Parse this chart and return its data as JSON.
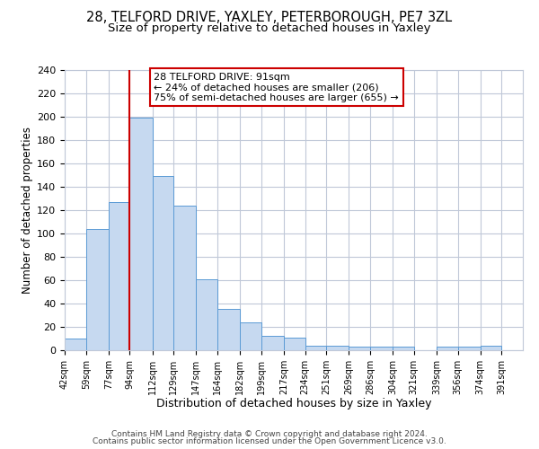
{
  "title1": "28, TELFORD DRIVE, YAXLEY, PETERBOROUGH, PE7 3ZL",
  "title2": "Size of property relative to detached houses in Yaxley",
  "xlabel": "Distribution of detached houses by size in Yaxley",
  "ylabel": "Number of detached properties",
  "bar_left_edges": [
    42,
    59,
    77,
    94,
    112,
    129,
    147,
    164,
    182,
    199,
    217,
    234,
    251,
    269,
    286,
    304,
    321,
    339,
    356,
    374
  ],
  "bar_widths": [
    17,
    18,
    17,
    18,
    17,
    18,
    17,
    18,
    17,
    18,
    17,
    17,
    18,
    17,
    18,
    17,
    18,
    17,
    18,
    17
  ],
  "bar_heights": [
    10,
    104,
    127,
    199,
    149,
    124,
    61,
    35,
    24,
    12,
    11,
    4,
    4,
    3,
    3,
    3,
    0,
    3,
    3,
    4
  ],
  "tick_labels": [
    "42sqm",
    "59sqm",
    "77sqm",
    "94sqm",
    "112sqm",
    "129sqm",
    "147sqm",
    "164sqm",
    "182sqm",
    "199sqm",
    "217sqm",
    "234sqm",
    "251sqm",
    "269sqm",
    "286sqm",
    "304sqm",
    "321sqm",
    "339sqm",
    "356sqm",
    "374sqm",
    "391sqm"
  ],
  "tick_positions": [
    42,
    59,
    77,
    94,
    112,
    129,
    147,
    164,
    182,
    199,
    217,
    234,
    251,
    269,
    286,
    304,
    321,
    339,
    356,
    374,
    391
  ],
  "bar_color": "#c6d9f0",
  "bar_edge_color": "#5b9bd5",
  "vline_x": 94,
  "vline_color": "#cc0000",
  "annotation_title": "28 TELFORD DRIVE: 91sqm",
  "annotation_line1": "← 24% of detached houses are smaller (206)",
  "annotation_line2": "75% of semi-detached houses are larger (655) →",
  "annotation_box_color": "#ffffff",
  "annotation_box_edge": "#cc0000",
  "ylim": [
    0,
    240
  ],
  "yticks": [
    0,
    20,
    40,
    60,
    80,
    100,
    120,
    140,
    160,
    180,
    200,
    220,
    240
  ],
  "footer1": "Contains HM Land Registry data © Crown copyright and database right 2024.",
  "footer2": "Contains public sector information licensed under the Open Government Licence v3.0.",
  "bg_color": "#ffffff",
  "grid_color": "#c0c8d8",
  "title1_fontsize": 10.5,
  "title2_fontsize": 9.5,
  "xlabel_fontsize": 9,
  "ylabel_fontsize": 8.5,
  "footer_fontsize": 6.5,
  "tick_fontsize": 7,
  "ytick_fontsize": 8
}
